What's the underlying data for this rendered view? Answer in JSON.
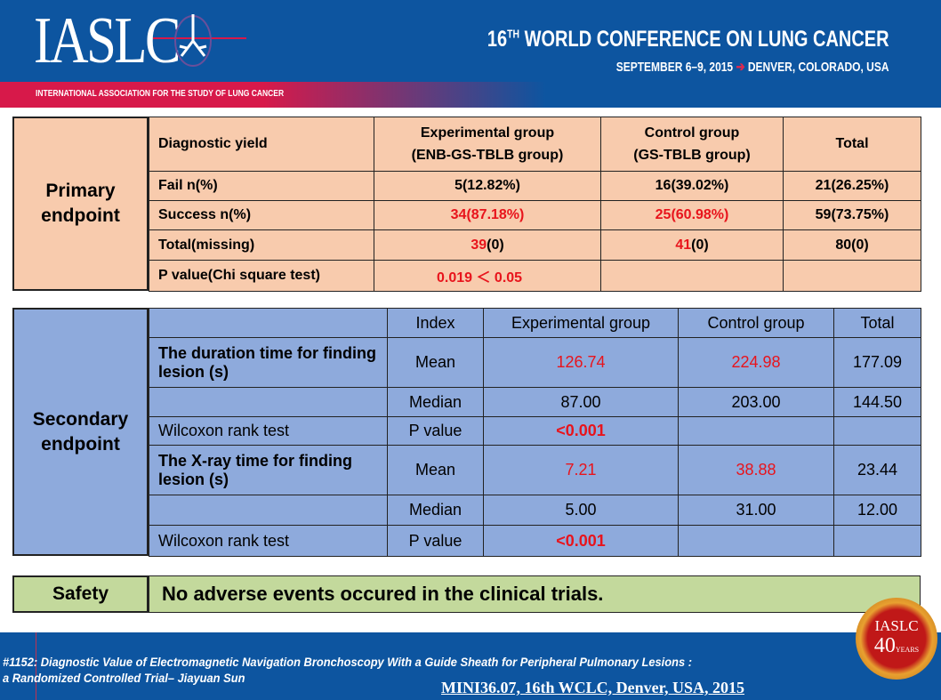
{
  "header": {
    "logo_text": "IASLC",
    "organization": "INTERNATIONAL ASSOCIATION FOR THE STUDY OF LUNG CANCER",
    "conference_prefix": "16",
    "conference_sup": "TH",
    "conference": " WORLD CONFERENCE ON LUNG CANCER",
    "dates": "SEPTEMBER 6–9, 2015",
    "arrow": "➔",
    "location": "DENVER, COLORADO, USA"
  },
  "primary": {
    "label": "Primary endpoint",
    "headers": [
      "Diagnostic yield",
      "Experimental group\n(ENB-GS-TBLB group)",
      "Control group\n(GS-TBLB group)",
      "Total"
    ],
    "rows": [
      {
        "label": "Fail n(%)",
        "exp": "5(12.82%)",
        "ctrl": "16(39.02%)",
        "total": "21(26.25%)"
      },
      {
        "label": "Success n(%)",
        "exp": "34(87.18%)",
        "ctrl": "25(60.98%)",
        "total": "59(73.75%)"
      },
      {
        "label": "Total(missing)",
        "exp_n": "39",
        "exp_m": "(0)",
        "ctrl_n": "41",
        "ctrl_m": "(0)",
        "total": "80(0)"
      },
      {
        "label": "P value(Chi square test)",
        "exp": "0.019 ＜ 0.05",
        "ctrl": "",
        "total": ""
      }
    ]
  },
  "secondary": {
    "label": "Secondary endpoint",
    "headers": [
      "",
      "Index",
      "Experimental group",
      "Control group",
      "Total"
    ],
    "rows": [
      {
        "label": "The duration time for finding lesion (s)",
        "index": "Mean",
        "exp": "126.74",
        "ctrl": "224.98",
        "total": "177.09"
      },
      {
        "label": "",
        "index": "Median",
        "exp": "87.00",
        "ctrl": "203.00",
        "total": "144.50"
      },
      {
        "label": "Wilcoxon rank test",
        "index": "P value",
        "exp": "<0.001",
        "ctrl": "",
        "total": ""
      },
      {
        "label": "The X-ray time for  finding lesion (s)",
        "index": "Mean",
        "exp": "7.21",
        "ctrl": "38.88",
        "total": "23.44"
      },
      {
        "label": "",
        "index": "Median",
        "exp": "5.00",
        "ctrl": "31.00",
        "total": "12.00"
      },
      {
        "label": "Wilcoxon rank test",
        "index": "P value",
        "exp": "<0.001",
        "ctrl": "",
        "total": ""
      }
    ]
  },
  "safety": {
    "label": "Safety",
    "text": "No adverse events occured in the clinical trials."
  },
  "footer": {
    "title_line1": "#1152: Diagnostic Value of Electromagnetic Navigation Bronchoscopy With a Guide Sheath for Peripheral Pulmonary Lesions :",
    "title_line2": "a Randomized Controlled Trial– Jiayuan Sun",
    "session": "MINI36.07, 16th WCLC, Denver, USA, 2015",
    "badge_top": "IASLC",
    "badge_num": "40",
    "badge_years": "YEARS"
  },
  "colors": {
    "header_blue": "#0d55a0",
    "accent_red": "#d7194a",
    "primary_fill": "#f8cbad",
    "secondary_fill": "#8eaadc",
    "safety_fill": "#c3d99c",
    "highlight_text": "#e8141c"
  }
}
